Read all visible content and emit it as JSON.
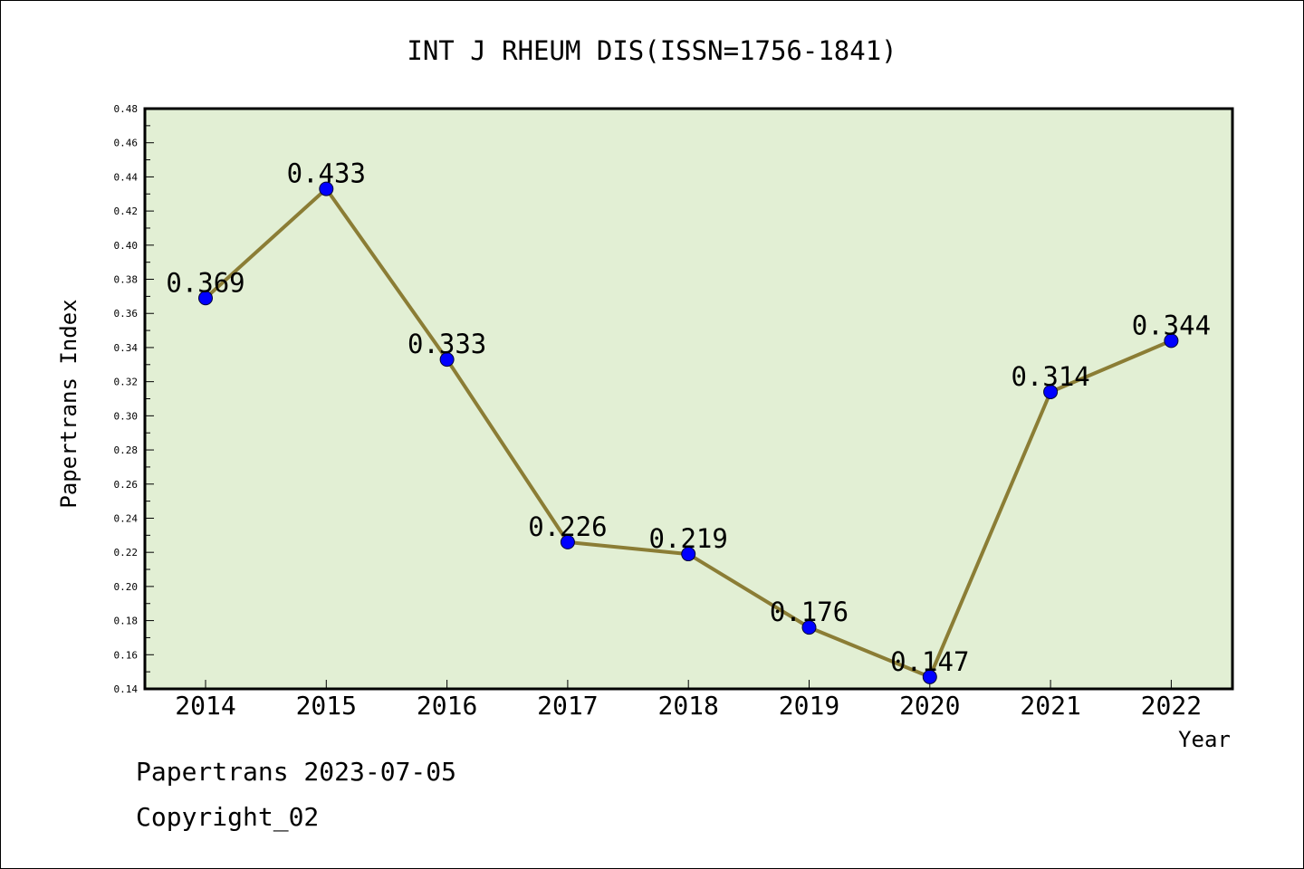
{
  "chart_data": {
    "type": "line",
    "title": "INT J RHEUM DIS(ISSN=1756-1841)",
    "xlabel": "Year",
    "ylabel": "Papertrans Index",
    "x": [
      "2014",
      "2015",
      "2016",
      "2017",
      "2018",
      "2019",
      "2020",
      "2021",
      "2022"
    ],
    "values": [
      0.369,
      0.433,
      0.333,
      0.226,
      0.219,
      0.176,
      0.147,
      0.314,
      0.344
    ],
    "data_labels": [
      "0.369",
      "0.433",
      "0.333",
      "0.226",
      "0.219",
      "0.176",
      "0.147",
      "0.314",
      "0.344"
    ],
    "ylim": [
      0.14,
      0.48
    ],
    "yticks": [
      "0.14",
      "0.16",
      "0.18",
      "0.20",
      "0.22",
      "0.24",
      "0.26",
      "0.28",
      "0.30",
      "0.32",
      "0.34",
      "0.36",
      "0.38",
      "0.40",
      "0.42",
      "0.44",
      "0.46",
      "0.48"
    ],
    "grid": false,
    "colors": {
      "plot_background": "#e2efd4",
      "line": "#8b7d35",
      "marker": "#0000ff"
    }
  },
  "footer": {
    "line1": "Papertrans 2023-07-05",
    "line2": "Copyright_02"
  }
}
